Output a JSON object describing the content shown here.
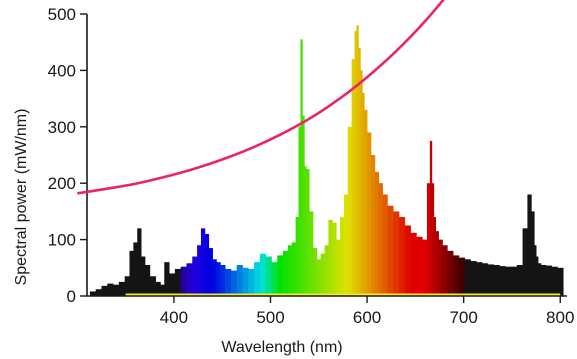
{
  "chart_data": {
    "type": "area",
    "xlabel": "Wavelength (nm)",
    "ylabel": "Spectral power (mW/nm)",
    "xlim": [
      310,
      807
    ],
    "ylim": [
      0,
      500
    ],
    "xticks": [
      "400",
      "500",
      "600",
      "700",
      "800"
    ],
    "yticks": [
      "0",
      "100",
      "200",
      "300",
      "400",
      "500"
    ],
    "grid": false,
    "series": [
      {
        "style": "spectrum-bars",
        "x": [
          316,
          322,
          328,
          334,
          340,
          346,
          352,
          356,
          360,
          364,
          368,
          372,
          378,
          384,
          388,
          392,
          398,
          404,
          410,
          416,
          422,
          426,
          430,
          434,
          438,
          442,
          446,
          450,
          456,
          462,
          468,
          474,
          480,
          486,
          492,
          498,
          504,
          510,
          516,
          520,
          524,
          528,
          530,
          532,
          534,
          536,
          538,
          542,
          546,
          550,
          554,
          558,
          562,
          566,
          570,
          574,
          578,
          582,
          586,
          588,
          590,
          592,
          594,
          596,
          598,
          602,
          606,
          610,
          614,
          618,
          624,
          630,
          636,
          642,
          648,
          654,
          660,
          664,
          666,
          668,
          670,
          672,
          676,
          680,
          686,
          692,
          698,
          704,
          710,
          716,
          722,
          728,
          734,
          740,
          746,
          752,
          758,
          764,
          768,
          772,
          774,
          776,
          778,
          782,
          788,
          794,
          800
        ],
        "values": [
          8,
          12,
          18,
          22,
          20,
          25,
          35,
          80,
          95,
          120,
          70,
          55,
          35,
          25,
          20,
          60,
          40,
          48,
          52,
          58,
          70,
          90,
          120,
          110,
          85,
          65,
          60,
          55,
          48,
          45,
          55,
          50,
          48,
          60,
          75,
          70,
          60,
          72,
          80,
          90,
          95,
          140,
          300,
          455,
          320,
          230,
          225,
          150,
          85,
          65,
          75,
          90,
          135,
          130,
          100,
          140,
          180,
          300,
          420,
          470,
          480,
          440,
          400,
          360,
          330,
          290,
          250,
          220,
          200,
          180,
          160,
          150,
          140,
          125,
          112,
          105,
          100,
          200,
          275,
          200,
          140,
          115,
          100,
          90,
          80,
          72,
          68,
          65,
          62,
          60,
          58,
          56,
          55,
          53,
          52,
          52,
          55,
          120,
          180,
          150,
          90,
          70,
          58,
          55,
          54,
          52,
          50
        ]
      },
      {
        "style": "curve",
        "color": "#e8246a",
        "x": [
          300,
          330,
          360,
          390,
          420,
          450,
          480,
          510,
          540,
          570,
          600,
          630,
          660,
          690
        ],
        "values": [
          182,
          190,
          199,
          211,
          225,
          242,
          262,
          286,
          314,
          348,
          388,
          434,
          487,
          548
        ]
      }
    ]
  },
  "colors": {
    "axis": "#1a1a1a",
    "curve": "#e8246a",
    "baseline": "#f2ea2a"
  }
}
